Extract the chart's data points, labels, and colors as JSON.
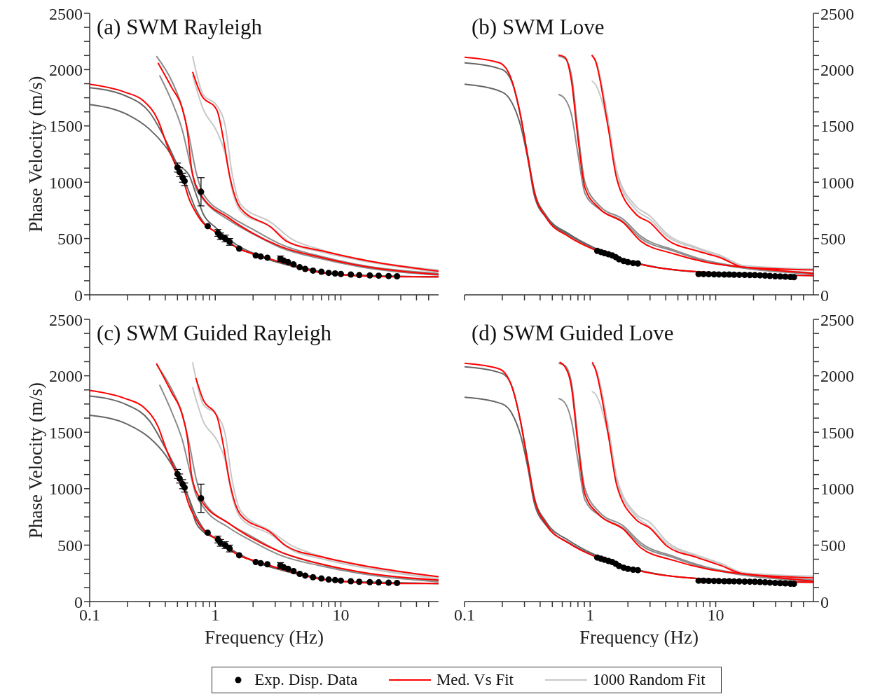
{
  "chart_data": [
    {
      "type": "line",
      "title": "(a) SWM Rayleigh",
      "ylabel": "Phase Velocity (m/s)",
      "log": "x",
      "legend": "bottom",
      "tick_labels": "y",
      "xlim": [
        0.1,
        60
      ],
      "ylim": [
        0,
        2500
      ],
      "xticks": [
        0.1,
        {
          "value": 0.2,
          "label": null
        },
        {
          "value": 0.3,
          "label": null
        },
        {
          "value": 0.4,
          "label": null
        },
        {
          "value": 0.5,
          "label": null
        },
        {
          "value": 0.6,
          "label": null
        },
        {
          "value": 0.7,
          "label": null
        },
        {
          "value": 0.8,
          "label": null
        },
        {
          "value": 0.9,
          "label": null
        },
        1,
        {
          "value": 2,
          "label": null
        },
        {
          "value": 3,
          "label": null
        },
        {
          "value": 4,
          "label": null
        },
        {
          "value": 5,
          "label": null
        },
        {
          "value": 6,
          "label": null
        },
        {
          "value": 7,
          "label": null
        },
        {
          "value": 8,
          "label": null
        },
        {
          "value": 9,
          "label": null
        },
        10,
        {
          "value": 20,
          "label": null
        },
        {
          "value": 30,
          "label": null
        },
        {
          "value": 40,
          "label": null
        },
        {
          "value": 50,
          "label": null
        }
      ],
      "yticks": [
        0,
        {
          "value": 125,
          "label": null
        },
        {
          "value": 250,
          "label": null
        },
        {
          "value": 375,
          "label": null
        },
        500,
        {
          "value": 625,
          "label": null
        },
        {
          "value": 750,
          "label": null
        },
        {
          "value": 875,
          "label": null
        },
        1000,
        {
          "value": 1125,
          "label": null
        },
        {
          "value": 1250,
          "label": null
        },
        {
          "value": 1375,
          "label": null
        },
        1500,
        {
          "value": 1625,
          "label": null
        },
        {
          "value": 1750,
          "label": null
        },
        {
          "value": 1875,
          "label": null
        },
        2000,
        {
          "value": 2125,
          "label": null
        },
        {
          "value": 2250,
          "label": null
        },
        {
          "value": 2375,
          "label": null
        },
        2500
      ],
      "series": [
        {
          "type": "scatter",
          "name": "Exp. Disp. Data",
          "color": "#000000",
          "marker": "circle",
          "x": [
            0.5,
            0.52,
            0.55,
            0.57,
            0.77,
            0.87,
            1.05,
            1.1,
            1.2,
            1.3,
            1.55,
            2.1,
            2.3,
            2.6,
            3.3,
            3.5,
            3.8,
            4.2,
            4.7,
            5.2,
            6,
            7,
            8,
            9,
            10,
            12,
            14,
            17,
            20,
            24,
            28
          ],
          "values": [
            1130,
            1090,
            1040,
            1010,
            915,
            610,
            550,
            520,
            500,
            470,
            410,
            350,
            340,
            330,
            320,
            305,
            290,
            270,
            245,
            230,
            215,
            205,
            195,
            190,
            185,
            180,
            175,
            172,
            170,
            167,
            165
          ],
          "errors": [
            40,
            40,
            40,
            40,
            125,
            null,
            30,
            30,
            30,
            30,
            null,
            null,
            null,
            null,
            25,
            null,
            null,
            null,
            null,
            null,
            null,
            null,
            null,
            null,
            null,
            null,
            null,
            null,
            null,
            null,
            null
          ]
        },
        {
          "type": "line",
          "name": "Med. Vs Fit",
          "color": "#ff0000",
          "x": [
            0.1,
            0.19,
            0.27,
            0.35,
            0.41,
            0.48,
            0.55,
            0.62,
            0.71,
            0.77,
            1.03,
            1.53,
            2.08,
            4.65,
            7.1,
            25,
            60
          ],
          "values": [
            1870,
            1800,
            1720,
            1550,
            1340,
            1160,
            1030,
            850,
            720,
            660,
            550,
            410,
            360,
            245,
            195,
            160,
            160
          ]
        },
        {
          "type": "line",
          "color": "#ff0000",
          "x": [
            0.35,
            0.45,
            0.54,
            0.6,
            0.65,
            0.77,
            1.29,
            1.97,
            3.3,
            7.1,
            16.7,
            60
          ],
          "values": [
            2060,
            1840,
            1670,
            1450,
            1110,
            890,
            680,
            550,
            430,
            330,
            245,
            180
          ]
        },
        {
          "type": "line",
          "color": "#ff0000",
          "x": [
            0.66,
            0.77,
            1.03,
            1.17,
            1.29,
            1.6,
            2.78,
            3.7,
            7.1,
            16.7,
            60
          ],
          "values": [
            1980,
            1780,
            1640,
            1360,
            1080,
            765,
            600,
            475,
            390,
            300,
            210
          ]
        },
        {
          "type": "line",
          "name": "1000 Random Fit",
          "color": "#c8c8c8",
          "x": [
            0.66,
            0.8,
            1.03,
            1.2,
            1.35,
            1.6,
            2.8,
            4,
            7,
            17,
            60
          ],
          "values": [
            2120,
            1780,
            1680,
            1500,
            1100,
            800,
            640,
            500,
            400,
            300,
            220
          ]
        },
        {
          "type": "line",
          "color": "#c8c8c8",
          "x": [
            0.66,
            0.8,
            1.03,
            1.2,
            1.35,
            1.6,
            2.8,
            4,
            7,
            17,
            60
          ],
          "values": [
            1950,
            1650,
            1450,
            1250,
            950,
            740,
            600,
            460,
            380,
            290,
            200
          ]
        },
        {
          "type": "line",
          "color": "#8c8c8c",
          "x": [
            0.34,
            0.45,
            0.55,
            0.62,
            0.7,
            0.8,
            1.3,
            2,
            3.3,
            7,
            17,
            60
          ],
          "values": [
            2120,
            1900,
            1650,
            1400,
            1100,
            900,
            700,
            580,
            450,
            340,
            250,
            190
          ]
        },
        {
          "type": "line",
          "color": "#8c8c8c",
          "x": [
            0.36,
            0.45,
            0.55,
            0.62,
            0.7,
            0.8,
            1.3,
            2,
            3.3,
            7,
            17,
            60
          ],
          "values": [
            1950,
            1720,
            1450,
            1200,
            950,
            850,
            660,
            540,
            420,
            320,
            235,
            175
          ]
        },
        {
          "type": "line",
          "color": "#666666",
          "x": [
            0.1,
            0.2,
            0.3,
            0.4,
            0.5,
            0.62,
            0.7,
            0.8,
            1,
            1.5,
            2,
            4.65,
            10,
            60
          ],
          "values": [
            1690,
            1600,
            1470,
            1320,
            1160,
            1060,
            900,
            720,
            600,
            440,
            370,
            250,
            180,
            160
          ]
        },
        {
          "type": "line",
          "color": "#666666",
          "x": [
            0.1,
            0.2,
            0.3,
            0.4,
            0.5,
            0.6,
            0.7,
            0.8,
            1,
            1.5,
            2,
            4.65,
            10,
            60
          ],
          "values": [
            1840,
            1760,
            1620,
            1380,
            1150,
            950,
            760,
            650,
            560,
            420,
            360,
            240,
            180,
            160
          ]
        }
      ]
    },
    {
      "type": "line",
      "title": "(b) SWM Love",
      "log": "x",
      "tick_labels": "y",
      "xlim": [
        0.1,
        60
      ],
      "ylim": [
        0,
        2500
      ],
      "xticks": [
        0.1,
        {
          "value": 0.2,
          "label": null
        },
        {
          "value": 0.3,
          "label": null
        },
        {
          "value": 0.4,
          "label": null
        },
        {
          "value": 0.5,
          "label": null
        },
        {
          "value": 0.6,
          "label": null
        },
        {
          "value": 0.7,
          "label": null
        },
        {
          "value": 0.8,
          "label": null
        },
        {
          "value": 0.9,
          "label": null
        },
        1,
        {
          "value": 2,
          "label": null
        },
        {
          "value": 3,
          "label": null
        },
        {
          "value": 4,
          "label": null
        },
        {
          "value": 5,
          "label": null
        },
        {
          "value": 6,
          "label": null
        },
        {
          "value": 7,
          "label": null
        },
        {
          "value": 8,
          "label": null
        },
        {
          "value": 9,
          "label": null
        },
        10,
        {
          "value": 20,
          "label": null
        },
        {
          "value": 30,
          "label": null
        },
        {
          "value": 40,
          "label": null
        },
        {
          "value": 50,
          "label": null
        }
      ],
      "yticks": [
        0,
        {
          "value": 125,
          "label": null
        },
        {
          "value": 250,
          "label": null
        },
        {
          "value": 375,
          "label": null
        },
        500,
        {
          "value": 625,
          "label": null
        },
        {
          "value": 750,
          "label": null
        },
        {
          "value": 875,
          "label": null
        },
        1000,
        {
          "value": 1125,
          "label": null
        },
        {
          "value": 1250,
          "label": null
        },
        {
          "value": 1375,
          "label": null
        },
        1500,
        {
          "value": 1625,
          "label": null
        },
        {
          "value": 1750,
          "label": null
        },
        {
          "value": 1875,
          "label": null
        },
        2000,
        {
          "value": 2125,
          "label": null
        },
        {
          "value": 2250,
          "label": null
        },
        {
          "value": 2375,
          "label": null
        },
        2500
      ],
      "series": [
        {
          "type": "scatter",
          "color": "#000000",
          "marker": "circle",
          "x": [
            1.14,
            1.22,
            1.3,
            1.4,
            1.5,
            1.6,
            1.7,
            1.85,
            2,
            2.2,
            2.4,
            7.3,
            8,
            8.8,
            9.7,
            10.6,
            11.7,
            12.8,
            14,
            15.4,
            17,
            18.7,
            20.5,
            22.5,
            24.7,
            27,
            29.7,
            32.6,
            35.8,
            39.4,
            42
          ],
          "values": [
            390,
            380,
            370,
            360,
            350,
            335,
            315,
            300,
            290,
            282,
            278,
            185,
            184,
            183,
            182,
            181,
            180,
            180,
            179,
            178,
            177,
            176,
            175,
            173,
            171,
            168,
            165,
            163,
            161,
            158,
            157
          ]
        },
        {
          "type": "line",
          "color": "#ff0000",
          "x": [
            0.1,
            0.19,
            0.235,
            0.28,
            0.317,
            0.36,
            0.45,
            0.68,
            1.14,
            2.4,
            7.1,
            60
          ],
          "values": [
            2110,
            2060,
            1920,
            1590,
            1240,
            910,
            680,
            515,
            390,
            275,
            205,
            170
          ]
        },
        {
          "type": "line",
          "color": "#ff0000",
          "x": [
            0.56,
            0.63,
            0.71,
            0.8,
            0.91,
            1.19,
            1.84,
            2.54,
            4.6,
            8.8,
            16.7,
            60
          ],
          "values": [
            2130,
            2110,
            1900,
            1390,
            950,
            765,
            640,
            475,
            365,
            285,
            245,
            190
          ]
        },
        {
          "type": "line",
          "color": "#ff0000",
          "x": [
            1.03,
            1.1,
            1.39,
            1.63,
            2.3,
            3,
            4.1,
            7.1,
            10.9,
            16.7,
            60
          ],
          "values": [
            2130,
            2080,
            1490,
            1030,
            720,
            640,
            490,
            390,
            330,
            245,
            220
          ]
        },
        {
          "type": "line",
          "color": "#c8c8c8",
          "x": [
            1.03,
            1.1,
            1.39,
            1.63,
            2.3,
            3,
            4.1,
            7.1,
            10.9,
            16.7,
            60
          ],
          "values": [
            2120,
            2090,
            1560,
            1100,
            790,
            700,
            540,
            420,
            350,
            260,
            230
          ]
        },
        {
          "type": "line",
          "color": "#c8c8c8",
          "x": [
            1.03,
            1.1,
            1.39,
            1.63,
            2.3,
            3,
            4.1,
            7.1,
            10.9,
            16.7,
            60
          ],
          "values": [
            1900,
            1870,
            1500,
            1080,
            760,
            670,
            520,
            410,
            340,
            250,
            225
          ]
        },
        {
          "type": "line",
          "color": "#8c8c8c",
          "x": [
            0.56,
            0.63,
            0.71,
            0.8,
            0.91,
            1.19,
            1.84,
            2.54,
            4.6,
            8.8,
            60
          ],
          "values": [
            2120,
            2100,
            1950,
            1450,
            1000,
            790,
            670,
            520,
            400,
            300,
            195
          ]
        },
        {
          "type": "line",
          "color": "#8c8c8c",
          "x": [
            0.56,
            0.63,
            0.71,
            0.8,
            0.91,
            1.19,
            1.84,
            2.54,
            4.6,
            8.8,
            60
          ],
          "values": [
            1780,
            1740,
            1600,
            1250,
            900,
            760,
            650,
            500,
            390,
            290,
            185
          ]
        },
        {
          "type": "line",
          "color": "#666666",
          "x": [
            0.1,
            0.2,
            0.24,
            0.28,
            0.32,
            0.36,
            0.45,
            0.68,
            1.14,
            2.4,
            7,
            60
          ],
          "values": [
            1870,
            1800,
            1700,
            1500,
            1200,
            880,
            680,
            530,
            400,
            280,
            205,
            172
          ]
        },
        {
          "type": "line",
          "color": "#666666",
          "x": [
            0.1,
            0.2,
            0.24,
            0.28,
            0.32,
            0.36,
            0.45,
            0.68,
            1.14,
            2.4,
            7,
            60
          ],
          "values": [
            2060,
            2000,
            1880,
            1580,
            1230,
            920,
            700,
            540,
            405,
            280,
            205,
            172
          ]
        }
      ]
    },
    {
      "type": "line",
      "title": "(c) SWM Guided Rayleigh",
      "xlabel": "Frequency (Hz)",
      "ylabel": "Phase Velocity (m/s)",
      "log": "x",
      "xlim": [
        0.1,
        60
      ],
      "ylim": [
        0,
        2500
      ],
      "xticks": [
        0.1,
        {
          "value": 0.2,
          "label": null
        },
        {
          "value": 0.3,
          "label": null
        },
        {
          "value": 0.4,
          "label": null
        },
        {
          "value": 0.5,
          "label": null
        },
        {
          "value": 0.6,
          "label": null
        },
        {
          "value": 0.7,
          "label": null
        },
        {
          "value": 0.8,
          "label": null
        },
        {
          "value": 0.9,
          "label": null
        },
        1,
        {
          "value": 2,
          "label": null
        },
        {
          "value": 3,
          "label": null
        },
        {
          "value": 4,
          "label": null
        },
        {
          "value": 5,
          "label": null
        },
        {
          "value": 6,
          "label": null
        },
        {
          "value": 7,
          "label": null
        },
        {
          "value": 8,
          "label": null
        },
        {
          "value": 9,
          "label": null
        },
        10,
        {
          "value": 20,
          "label": null
        },
        {
          "value": 30,
          "label": null
        },
        {
          "value": 40,
          "label": null
        },
        {
          "value": 50,
          "label": null
        }
      ],
      "yticks": [
        0,
        {
          "value": 125,
          "label": null
        },
        {
          "value": 250,
          "label": null
        },
        {
          "value": 375,
          "label": null
        },
        500,
        {
          "value": 625,
          "label": null
        },
        {
          "value": 750,
          "label": null
        },
        {
          "value": 875,
          "label": null
        },
        1000,
        {
          "value": 1125,
          "label": null
        },
        {
          "value": 1250,
          "label": null
        },
        {
          "value": 1375,
          "label": null
        },
        1500,
        {
          "value": 1625,
          "label": null
        },
        {
          "value": 1750,
          "label": null
        },
        {
          "value": 1875,
          "label": null
        },
        2000,
        {
          "value": 2125,
          "label": null
        },
        {
          "value": 2250,
          "label": null
        },
        {
          "value": 2375,
          "label": null
        },
        2500
      ],
      "series": [
        {
          "type": "scatter",
          "color": "#000000",
          "marker": "circle",
          "x": [
            0.5,
            0.52,
            0.55,
            0.57,
            0.77,
            0.87,
            1.05,
            1.1,
            1.2,
            1.3,
            1.55,
            2.1,
            2.3,
            2.6,
            3.3,
            3.5,
            3.8,
            4.2,
            4.7,
            5.2,
            6,
            7,
            8,
            9,
            10,
            12,
            14,
            17,
            20,
            24,
            28
          ],
          "values": [
            1130,
            1090,
            1040,
            1010,
            915,
            610,
            550,
            520,
            500,
            470,
            410,
            350,
            340,
            330,
            320,
            305,
            290,
            270,
            245,
            230,
            215,
            205,
            195,
            190,
            185,
            180,
            175,
            172,
            170,
            167,
            165
          ],
          "errors": [
            40,
            40,
            40,
            40,
            125,
            null,
            30,
            30,
            30,
            30,
            null,
            null,
            null,
            null,
            25,
            null,
            null,
            null,
            null,
            null,
            null,
            null,
            null,
            null,
            null,
            null,
            null,
            null,
            null,
            null,
            null
          ]
        },
        {
          "type": "line",
          "color": "#ff0000",
          "x": [
            0.1,
            0.19,
            0.27,
            0.35,
            0.41,
            0.48,
            0.55,
            0.62,
            0.71,
            0.77,
            1.03,
            1.53,
            2.08,
            4.65,
            7.1,
            25,
            60
          ],
          "values": [
            1870,
            1800,
            1720,
            1550,
            1340,
            1160,
            1030,
            850,
            720,
            660,
            550,
            410,
            360,
            245,
            195,
            160,
            160
          ]
        },
        {
          "type": "line",
          "color": "#ff0000",
          "x": [
            0.34,
            0.45,
            0.54,
            0.6,
            0.65,
            0.77,
            1.29,
            1.97,
            3.3,
            7.1,
            16.7,
            60
          ],
          "values": [
            2110,
            1850,
            1670,
            1450,
            1110,
            900,
            690,
            560,
            440,
            330,
            250,
            190
          ]
        },
        {
          "type": "line",
          "color": "#ff0000",
          "x": [
            0.7,
            0.8,
            1.03,
            1.17,
            1.29,
            1.6,
            2.78,
            3.7,
            7.1,
            16.7,
            60
          ],
          "values": [
            1980,
            1790,
            1640,
            1360,
            1080,
            765,
            610,
            490,
            395,
            310,
            220
          ]
        },
        {
          "type": "line",
          "color": "#c8c8c8",
          "x": [
            0.66,
            0.8,
            1.03,
            1.2,
            1.35,
            1.6,
            2.8,
            4,
            7,
            17,
            60
          ],
          "values": [
            2120,
            1750,
            1650,
            1480,
            1100,
            800,
            620,
            500,
            400,
            300,
            215
          ]
        },
        {
          "type": "line",
          "color": "#c8c8c8",
          "x": [
            0.66,
            0.8,
            1.03,
            1.2,
            1.35,
            1.6,
            2.8,
            4,
            7,
            17,
            60
          ],
          "values": [
            1900,
            1600,
            1430,
            1250,
            950,
            740,
            590,
            460,
            380,
            290,
            200
          ]
        },
        {
          "type": "line",
          "color": "#8c8c8c",
          "x": [
            0.34,
            0.45,
            0.55,
            0.62,
            0.7,
            0.8,
            1.3,
            2,
            3.3,
            7,
            17,
            60
          ],
          "values": [
            2100,
            1880,
            1650,
            1400,
            1100,
            900,
            690,
            570,
            440,
            330,
            245,
            185
          ]
        },
        {
          "type": "line",
          "color": "#8c8c8c",
          "x": [
            0.36,
            0.45,
            0.55,
            0.62,
            0.7,
            0.8,
            1.3,
            2,
            3.3,
            7,
            17,
            60
          ],
          "values": [
            1920,
            1680,
            1420,
            1180,
            950,
            840,
            650,
            530,
            410,
            315,
            235,
            175
          ]
        },
        {
          "type": "line",
          "color": "#666666",
          "x": [
            0.1,
            0.2,
            0.3,
            0.4,
            0.5,
            0.62,
            0.7,
            0.8,
            1,
            1.5,
            2,
            4.65,
            10,
            60
          ],
          "values": [
            1650,
            1570,
            1450,
            1300,
            1120,
            900,
            700,
            620,
            560,
            430,
            360,
            250,
            180,
            160
          ]
        },
        {
          "type": "line",
          "color": "#666666",
          "x": [
            0.1,
            0.2,
            0.3,
            0.4,
            0.5,
            0.6,
            0.7,
            0.8,
            1,
            1.5,
            2,
            4.65,
            10,
            60
          ],
          "values": [
            1820,
            1740,
            1600,
            1360,
            1150,
            950,
            760,
            650,
            560,
            420,
            360,
            240,
            180,
            160
          ]
        }
      ]
    },
    {
      "type": "line",
      "title": "(d) SWM Guided Love",
      "xlabel": "Frequency (Hz)",
      "log": "x",
      "xlim": [
        0.1,
        60
      ],
      "ylim": [
        0,
        2500
      ],
      "xticks": [
        0.1,
        {
          "value": 0.2,
          "label": null
        },
        {
          "value": 0.3,
          "label": null
        },
        {
          "value": 0.4,
          "label": null
        },
        {
          "value": 0.5,
          "label": null
        },
        {
          "value": 0.6,
          "label": null
        },
        {
          "value": 0.7,
          "label": null
        },
        {
          "value": 0.8,
          "label": null
        },
        {
          "value": 0.9,
          "label": null
        },
        1,
        {
          "value": 2,
          "label": null
        },
        {
          "value": 3,
          "label": null
        },
        {
          "value": 4,
          "label": null
        },
        {
          "value": 5,
          "label": null
        },
        {
          "value": 6,
          "label": null
        },
        {
          "value": 7,
          "label": null
        },
        {
          "value": 8,
          "label": null
        },
        {
          "value": 9,
          "label": null
        },
        10,
        {
          "value": 20,
          "label": null
        },
        {
          "value": 30,
          "label": null
        },
        {
          "value": 40,
          "label": null
        },
        {
          "value": 50,
          "label": null
        }
      ],
      "yticks": [
        0,
        {
          "value": 125,
          "label": null
        },
        {
          "value": 250,
          "label": null
        },
        {
          "value": 375,
          "label": null
        },
        500,
        {
          "value": 625,
          "label": null
        },
        {
          "value": 750,
          "label": null
        },
        {
          "value": 875,
          "label": null
        },
        1000,
        {
          "value": 1125,
          "label": null
        },
        {
          "value": 1250,
          "label": null
        },
        {
          "value": 1375,
          "label": null
        },
        1500,
        {
          "value": 1625,
          "label": null
        },
        {
          "value": 1750,
          "label": null
        },
        {
          "value": 1875,
          "label": null
        },
        2000,
        {
          "value": 2125,
          "label": null
        },
        {
          "value": 2250,
          "label": null
        },
        {
          "value": 2375,
          "label": null
        },
        2500
      ],
      "series": [
        {
          "type": "scatter",
          "color": "#000000",
          "marker": "circle",
          "x": [
            1.14,
            1.22,
            1.3,
            1.4,
            1.5,
            1.6,
            1.7,
            1.85,
            2,
            2.2,
            2.4,
            7.3,
            8,
            8.8,
            9.7,
            10.6,
            11.7,
            12.8,
            14,
            15.4,
            17,
            18.7,
            20.5,
            22.5,
            24.7,
            27,
            29.7,
            32.6,
            35.8,
            39.4,
            42
          ],
          "values": [
            390,
            380,
            370,
            360,
            350,
            335,
            315,
            300,
            290,
            282,
            278,
            185,
            184,
            183,
            182,
            181,
            180,
            180,
            179,
            178,
            177,
            176,
            175,
            173,
            171,
            168,
            165,
            163,
            161,
            158,
            157
          ]
        },
        {
          "type": "line",
          "color": "#ff0000",
          "x": [
            0.1,
            0.19,
            0.235,
            0.28,
            0.317,
            0.36,
            0.45,
            0.68,
            1.14,
            2.4,
            7.1,
            60
          ],
          "values": [
            2110,
            2060,
            1920,
            1590,
            1240,
            910,
            680,
            515,
            390,
            275,
            205,
            170
          ]
        },
        {
          "type": "line",
          "color": "#ff0000",
          "x": [
            0.57,
            0.63,
            0.71,
            0.8,
            0.91,
            1.19,
            1.84,
            2.54,
            4.6,
            8.8,
            16.7,
            60
          ],
          "values": [
            2120,
            2080,
            1900,
            1390,
            950,
            765,
            640,
            475,
            365,
            285,
            245,
            180
          ]
        },
        {
          "type": "line",
          "color": "#ff0000",
          "x": [
            1.04,
            1.1,
            1.39,
            1.63,
            2.3,
            3,
            4.1,
            7.1,
            10.9,
            16.7,
            60
          ],
          "values": [
            2120,
            2060,
            1490,
            1030,
            730,
            650,
            490,
            390,
            320,
            245,
            210
          ]
        },
        {
          "type": "line",
          "color": "#c8c8c8",
          "x": [
            1.03,
            1.1,
            1.39,
            1.63,
            2.3,
            3,
            4.1,
            7.1,
            10.9,
            16.7,
            60
          ],
          "values": [
            2100,
            2070,
            1560,
            1100,
            780,
            700,
            530,
            410,
            340,
            255,
            225
          ]
        },
        {
          "type": "line",
          "color": "#c8c8c8",
          "x": [
            1.03,
            1.1,
            1.39,
            1.63,
            2.3,
            3,
            4.1,
            7.1,
            10.9,
            16.7,
            60
          ],
          "values": [
            1860,
            1840,
            1480,
            1070,
            760,
            660,
            510,
            400,
            330,
            245,
            215
          ]
        },
        {
          "type": "line",
          "color": "#8c8c8c",
          "x": [
            0.56,
            0.63,
            0.71,
            0.8,
            0.91,
            1.19,
            1.84,
            2.54,
            4.6,
            8.8,
            60
          ],
          "values": [
            2110,
            2090,
            1940,
            1440,
            1000,
            790,
            670,
            520,
            400,
            300,
            190
          ]
        },
        {
          "type": "line",
          "color": "#8c8c8c",
          "x": [
            0.56,
            0.63,
            0.71,
            0.8,
            0.91,
            1.19,
            1.84,
            2.54,
            4.6,
            8.8,
            60
          ],
          "values": [
            1800,
            1760,
            1600,
            1250,
            900,
            760,
            650,
            500,
            390,
            290,
            180
          ]
        },
        {
          "type": "line",
          "color": "#666666",
          "x": [
            0.1,
            0.2,
            0.24,
            0.28,
            0.32,
            0.36,
            0.45,
            0.68,
            1.14,
            2.4,
            7,
            60
          ],
          "values": [
            1810,
            1750,
            1660,
            1470,
            1180,
            870,
            670,
            520,
            395,
            280,
            205,
            172
          ]
        },
        {
          "type": "line",
          "color": "#666666",
          "x": [
            0.1,
            0.2,
            0.24,
            0.28,
            0.32,
            0.36,
            0.45,
            0.68,
            1.14,
            2.4,
            7,
            60
          ],
          "values": [
            2080,
            2020,
            1900,
            1590,
            1240,
            920,
            700,
            540,
            405,
            280,
            205,
            172
          ]
        }
      ]
    }
  ]
}
